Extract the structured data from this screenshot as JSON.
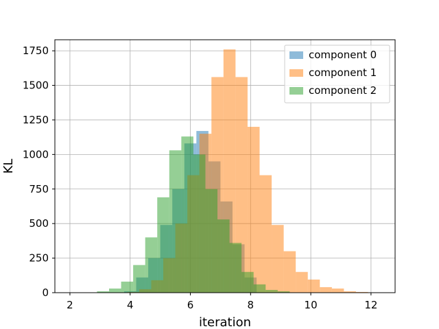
{
  "chart_data": {
    "type": "histogram",
    "xlabel": "iteration",
    "ylabel": "KL",
    "xlim": [
      1.5,
      12.8
    ],
    "ylim": [
      0,
      1830
    ],
    "x_ticks": [
      2,
      4,
      6,
      8,
      10,
      12
    ],
    "y_ticks": [
      0,
      250,
      500,
      750,
      1000,
      1250,
      1500,
      1750
    ],
    "grid": true,
    "legend_position": "top-right",
    "bin_width": 0.4,
    "series": [
      {
        "name": "component 0",
        "color": "#1f77b4",
        "opacity": 0.5,
        "bins": [
          {
            "x0": 3.8,
            "count": 10
          },
          {
            "x0": 4.2,
            "count": 110
          },
          {
            "x0": 4.6,
            "count": 250
          },
          {
            "x0": 5.0,
            "count": 490
          },
          {
            "x0": 5.4,
            "count": 750
          },
          {
            "x0": 5.8,
            "count": 1080
          },
          {
            "x0": 6.2,
            "count": 1170
          },
          {
            "x0": 6.6,
            "count": 950
          },
          {
            "x0": 7.0,
            "count": 660
          },
          {
            "x0": 7.4,
            "count": 350
          },
          {
            "x0": 7.8,
            "count": 110
          }
        ]
      },
      {
        "name": "component 1",
        "color": "#ff7f0e",
        "opacity": 0.5,
        "bins": [
          {
            "x0": 3.9,
            "count": 5
          },
          {
            "x0": 4.3,
            "count": 25
          },
          {
            "x0": 4.7,
            "count": 90
          },
          {
            "x0": 5.1,
            "count": 250
          },
          {
            "x0": 5.5,
            "count": 500
          },
          {
            "x0": 5.9,
            "count": 850
          },
          {
            "x0": 6.3,
            "count": 1150
          },
          {
            "x0": 6.7,
            "count": 1560
          },
          {
            "x0": 7.1,
            "count": 1760
          },
          {
            "x0": 7.5,
            "count": 1560
          },
          {
            "x0": 7.9,
            "count": 1200
          },
          {
            "x0": 8.3,
            "count": 850
          },
          {
            "x0": 8.7,
            "count": 490
          },
          {
            "x0": 9.1,
            "count": 300
          },
          {
            "x0": 9.5,
            "count": 150
          },
          {
            "x0": 9.9,
            "count": 95
          },
          {
            "x0": 10.3,
            "count": 40
          },
          {
            "x0": 10.7,
            "count": 30
          },
          {
            "x0": 11.1,
            "count": 10
          },
          {
            "x0": 11.5,
            "count": 5
          },
          {
            "x0": 11.9,
            "count": 2
          }
        ]
      },
      {
        "name": "component 2",
        "color": "#2ca02c",
        "opacity": 0.5,
        "bins": [
          {
            "x0": 2.9,
            "count": 10
          },
          {
            "x0": 3.3,
            "count": 30
          },
          {
            "x0": 3.7,
            "count": 80
          },
          {
            "x0": 4.1,
            "count": 200
          },
          {
            "x0": 4.5,
            "count": 400
          },
          {
            "x0": 4.9,
            "count": 690
          },
          {
            "x0": 5.3,
            "count": 1030
          },
          {
            "x0": 5.7,
            "count": 1130
          },
          {
            "x0": 6.1,
            "count": 1000
          },
          {
            "x0": 6.5,
            "count": 750
          },
          {
            "x0": 6.9,
            "count": 530
          },
          {
            "x0": 7.3,
            "count": 360
          },
          {
            "x0": 7.7,
            "count": 150
          },
          {
            "x0": 8.1,
            "count": 60
          },
          {
            "x0": 8.5,
            "count": 20
          },
          {
            "x0": 8.9,
            "count": 10
          }
        ]
      }
    ]
  }
}
